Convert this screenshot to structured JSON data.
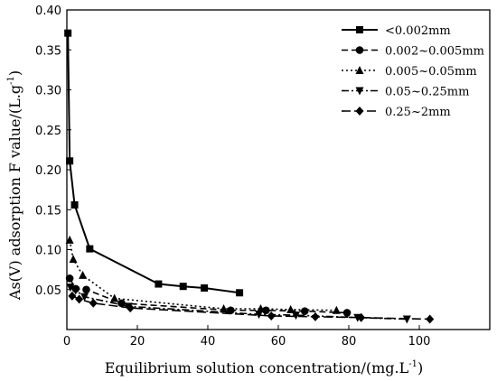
{
  "chart_data": {
    "type": "line",
    "xlabel": "Equilibrium solution concentration/(mg.L",
    "xlabel_sup": "-1",
    "xlabel_end": ")",
    "ylabel": "As(V) adsorption F value/(L.g",
    "ylabel_sup": "-1",
    "ylabel_end": ")",
    "xlim": [
      0,
      120
    ],
    "ylim": [
      0,
      0.4
    ],
    "x_ticks": [
      0,
      20,
      40,
      60,
      80,
      100
    ],
    "y_ticks": [
      0.05,
      0.1,
      0.15,
      0.2,
      0.25,
      0.3,
      0.35,
      0.4
    ],
    "x_tick_labels": [
      "0",
      "20",
      "40",
      "60",
      "80",
      "100"
    ],
    "y_tick_labels": [
      "0.05",
      "0.10",
      "0.15",
      "0.20",
      "0.25",
      "0.30",
      "0.35",
      "0.40"
    ],
    "grid": false,
    "legend_position": "top-right",
    "series": [
      {
        "name": "<0.002mm",
        "marker": "square",
        "dash": "solid",
        "x": [
          0.3,
          0.8,
          2.2,
          6.5,
          26.0,
          33.0,
          39.0,
          49.0
        ],
        "y": [
          0.371,
          0.211,
          0.156,
          0.101,
          0.057,
          0.054,
          0.052,
          0.046
        ]
      },
      {
        "name": "0.002~0.005mm",
        "marker": "circle",
        "dash": "dashed",
        "x": [
          0.8,
          2.5,
          5.5,
          15.5,
          46.5,
          56.5,
          67.5,
          79.5
        ],
        "y": [
          0.064,
          0.051,
          0.05,
          0.033,
          0.024,
          0.024,
          0.023,
          0.021
        ]
      },
      {
        "name": "0.005~0.05mm",
        "marker": "triangle",
        "dash": "dotted",
        "x": [
          0.8,
          1.8,
          4.5,
          13.5,
          44.5,
          55.0,
          63.5,
          76.5
        ],
        "y": [
          0.112,
          0.088,
          0.068,
          0.039,
          0.026,
          0.026,
          0.025,
          0.024
        ]
      },
      {
        "name": "0.05~0.25mm",
        "marker": "triangle-down",
        "dash": "dashdot",
        "x": [
          1.0,
          2.5,
          5.0,
          17.5,
          54.5,
          65.0,
          82.5,
          96.5
        ],
        "y": [
          0.053,
          0.049,
          0.041,
          0.029,
          0.019,
          0.018,
          0.015,
          0.013
        ]
      },
      {
        "name": "0.25~2mm",
        "marker": "diamond",
        "dash": "longdash",
        "x": [
          1.5,
          3.5,
          7.5,
          18.0,
          58.0,
          70.5,
          83.5,
          103.0
        ],
        "y": [
          0.042,
          0.038,
          0.033,
          0.027,
          0.017,
          0.016,
          0.015,
          0.013
        ]
      }
    ]
  }
}
